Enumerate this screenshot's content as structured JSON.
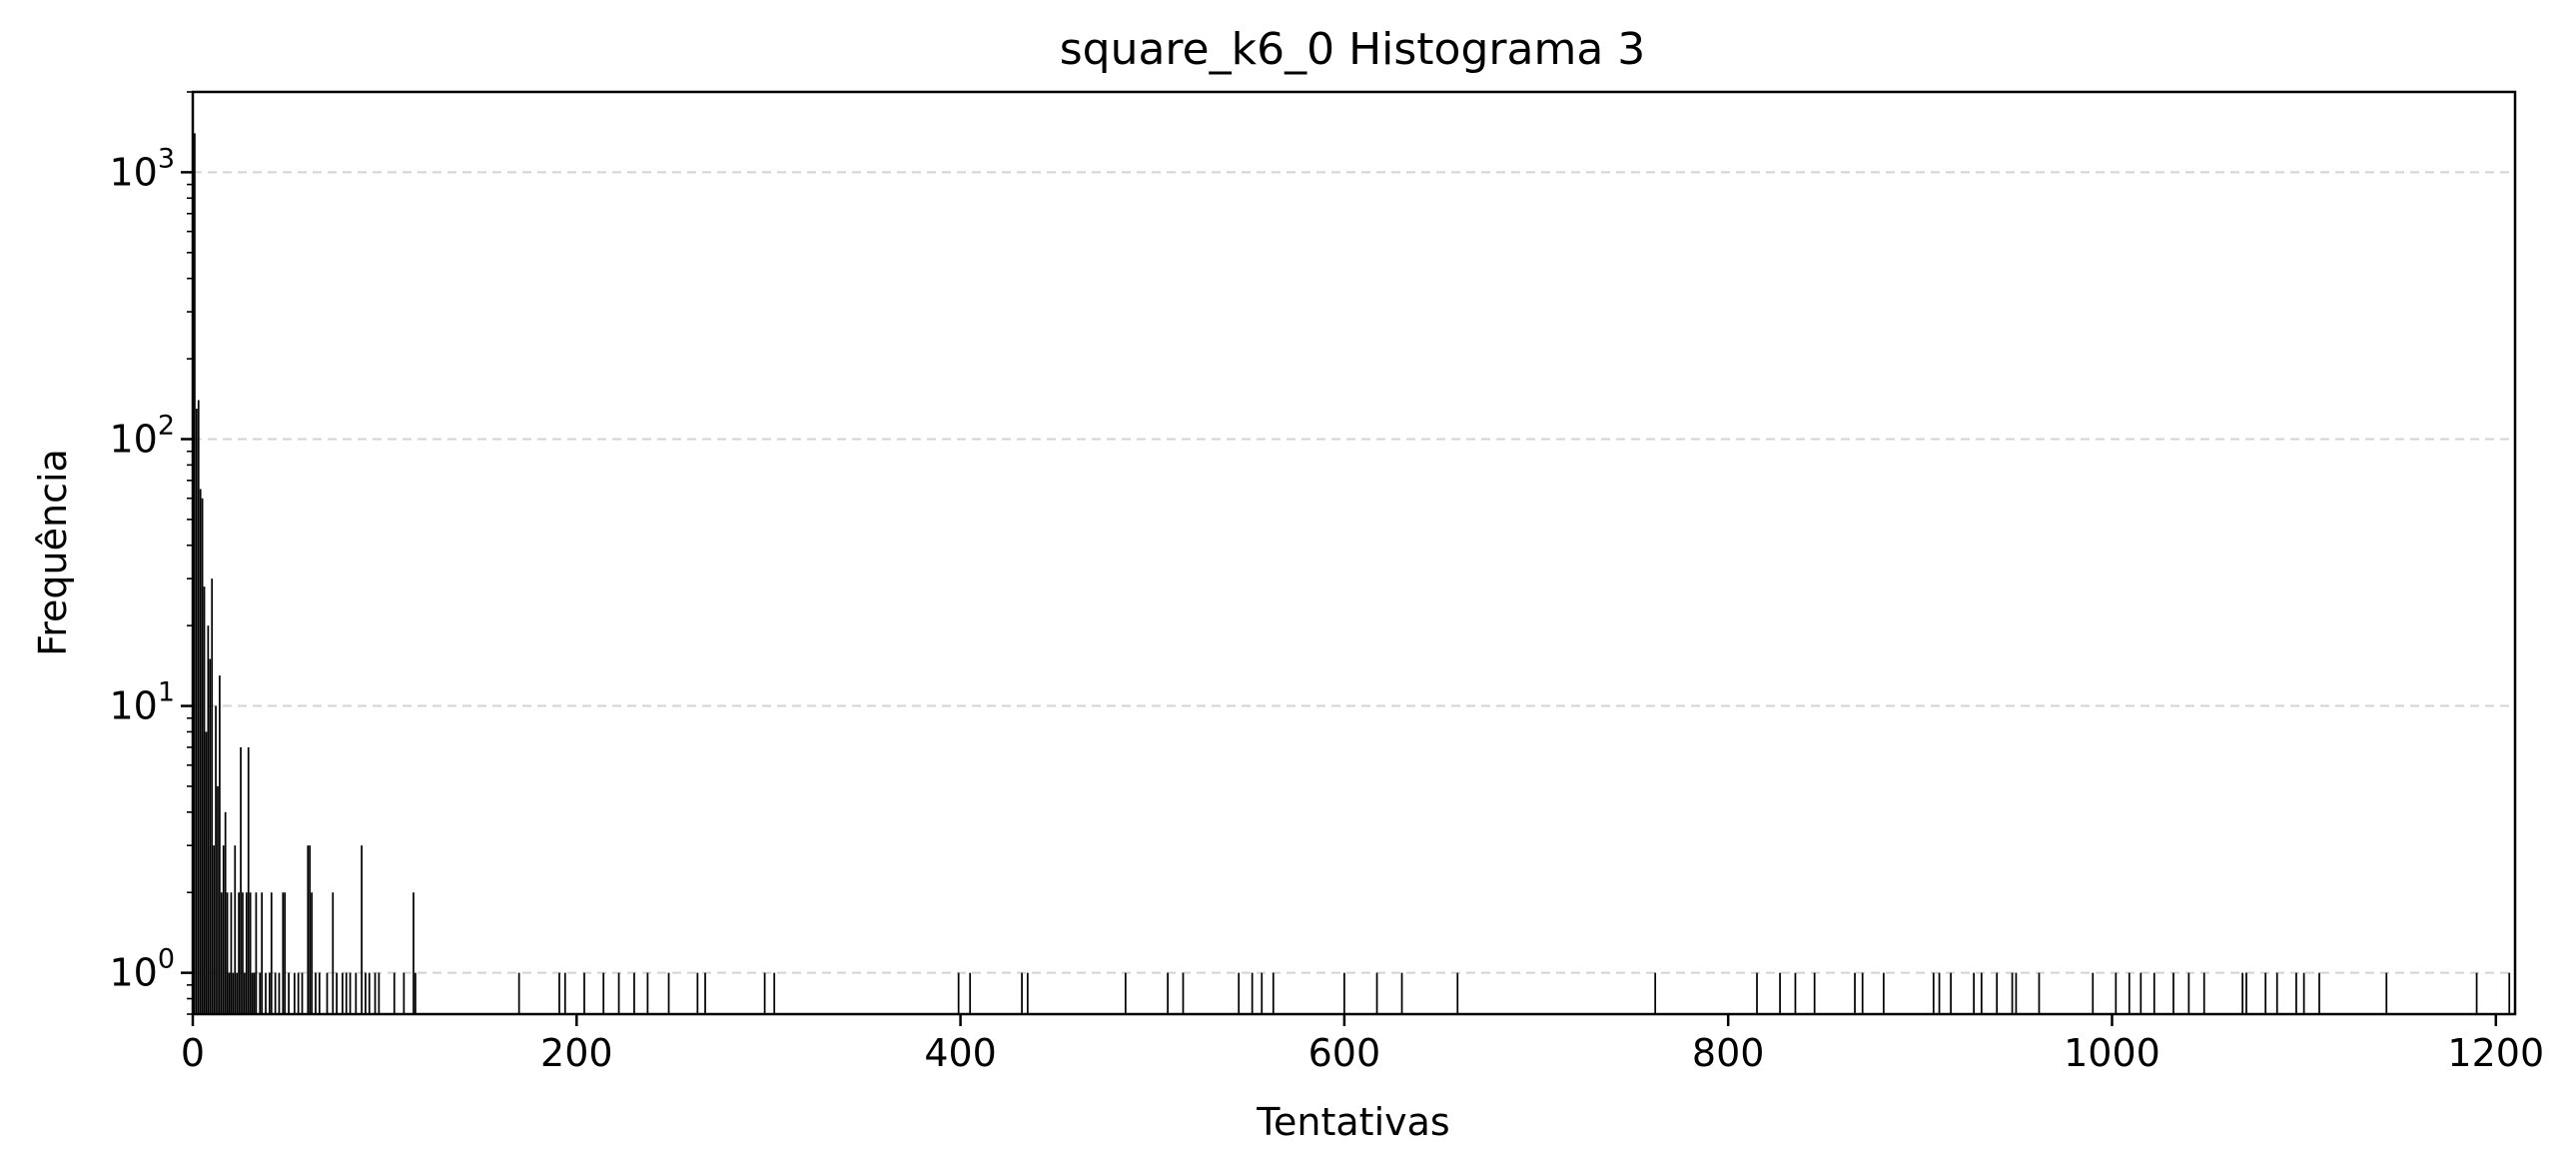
{
  "chart_data": {
    "type": "bar",
    "title": "square_k6_0 Histograma 3",
    "xlabel": "Tentativas",
    "ylabel": "Frequência",
    "yscale": "log",
    "xlim": [
      0,
      1210
    ],
    "ylim": [
      0.7,
      2000
    ],
    "grid": "y-major-dashed",
    "bar_color": "#000000",
    "grid_color": "#d3d3d3",
    "xticks": [
      {
        "value": 0,
        "label": "0"
      },
      {
        "value": 200,
        "label": "200"
      },
      {
        "value": 400,
        "label": "400"
      },
      {
        "value": 600,
        "label": "600"
      },
      {
        "value": 800,
        "label": "800"
      },
      {
        "value": 1000,
        "label": "1000"
      },
      {
        "value": 1200,
        "label": "1200"
      }
    ],
    "yticks": [
      {
        "value": 1,
        "base": "10",
        "exp": "0"
      },
      {
        "value": 10,
        "base": "10",
        "exp": "1"
      },
      {
        "value": 100,
        "base": "10",
        "exp": "2"
      },
      {
        "value": 1000,
        "base": "10",
        "exp": "3"
      }
    ],
    "x": [
      1,
      2,
      3,
      4,
      5,
      6,
      7,
      8,
      9,
      10,
      11,
      12,
      13,
      14,
      15,
      16,
      17,
      18,
      19,
      20,
      21,
      22,
      23,
      24,
      25,
      26,
      27,
      28,
      29,
      30,
      31,
      32,
      33,
      35,
      36,
      38,
      40,
      41,
      43,
      45,
      47,
      48,
      50,
      53,
      55,
      57,
      60,
      61,
      62,
      64,
      66,
      70,
      73,
      75,
      78,
      80,
      82,
      85,
      88,
      90,
      92,
      95,
      97,
      105,
      110,
      115,
      116,
      170,
      191,
      194,
      204,
      214,
      222,
      230,
      237,
      248,
      263,
      267,
      298,
      303,
      399,
      405,
      432,
      435,
      486,
      508,
      516,
      545,
      552,
      557,
      563,
      600,
      617,
      630,
      659,
      762,
      815,
      827,
      835,
      845,
      866,
      870,
      881,
      907,
      910,
      916,
      928,
      932,
      940,
      948,
      950,
      962,
      990,
      1002,
      1009,
      1015,
      1022,
      1032,
      1040,
      1048,
      1068,
      1070,
      1080,
      1086,
      1096,
      1100,
      1108,
      1143,
      1190,
      1207
    ],
    "values": [
      1400,
      130,
      140,
      65,
      60,
      28,
      8,
      20,
      15,
      30,
      3,
      10,
      5,
      13,
      2,
      3,
      4,
      2,
      1,
      2,
      1,
      3,
      1,
      2,
      7,
      2,
      1,
      2,
      7,
      2,
      1,
      1,
      2,
      1,
      2,
      1,
      1,
      2,
      1,
      1,
      2,
      2,
      1,
      1,
      1,
      1,
      3,
      3,
      2,
      1,
      1,
      1,
      2,
      1,
      1,
      1,
      1,
      1,
      3,
      1,
      1,
      1,
      1,
      1,
      1,
      2,
      1,
      1,
      1,
      1,
      1,
      1,
      1,
      1,
      1,
      1,
      1,
      1,
      1,
      1,
      1,
      1,
      1,
      1,
      1,
      1,
      1,
      1,
      1,
      1,
      1,
      1,
      1,
      1,
      1,
      1,
      1,
      1,
      1,
      1,
      1,
      1,
      1,
      1,
      1,
      1,
      1,
      1,
      1,
      1,
      1,
      1,
      1,
      1,
      1,
      1,
      1,
      1,
      1,
      1,
      1,
      1,
      1,
      1,
      1,
      1,
      1,
      1,
      1,
      1
    ]
  }
}
